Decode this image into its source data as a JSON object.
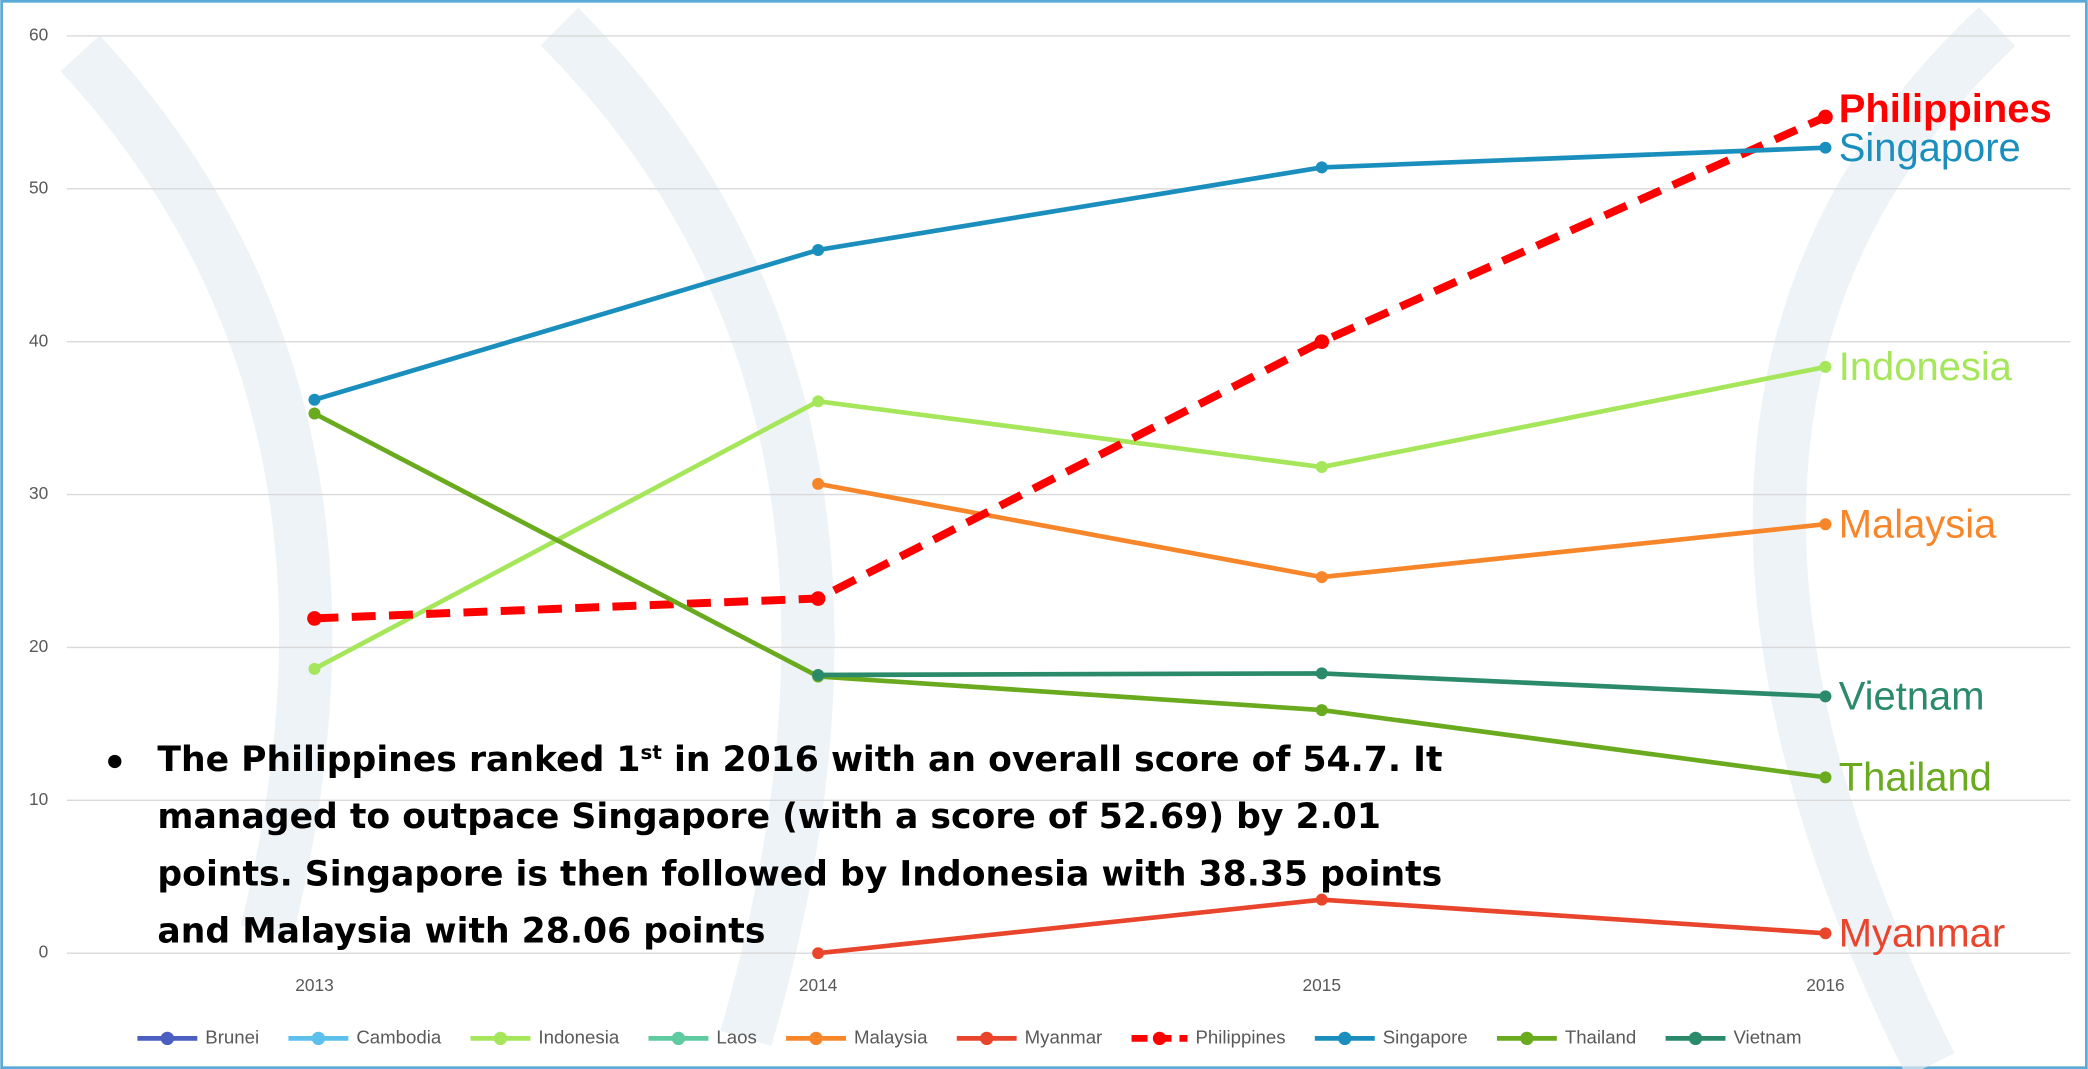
{
  "chart_data": {
    "type": "line",
    "categories": [
      "2013",
      "2014",
      "2015",
      "2016"
    ],
    "ylim": [
      0,
      60
    ],
    "yticks": [
      0,
      10,
      20,
      30,
      40,
      50,
      60
    ],
    "grid": true,
    "legend": "bottom",
    "end_labels": true,
    "series": [
      {
        "name": "Brunei",
        "color": "#4a5fc1",
        "values": [
          null,
          null,
          null,
          null
        ]
      },
      {
        "name": "Cambodia",
        "color": "#5bc0eb",
        "values": [
          null,
          null,
          null,
          null
        ]
      },
      {
        "name": "Indonesia",
        "color": "#a5e65a",
        "values": [
          18.6,
          36.1,
          31.8,
          38.35
        ]
      },
      {
        "name": "Laos",
        "color": "#5ecca0",
        "values": [
          null,
          null,
          null,
          null
        ]
      },
      {
        "name": "Malaysia",
        "color": "#f7862b",
        "values": [
          null,
          30.7,
          24.6,
          28.06
        ]
      },
      {
        "name": "Myanmar",
        "color": "#e8452c",
        "values": [
          null,
          0,
          3.5,
          1.3
        ]
      },
      {
        "name": "Philippines",
        "color": "#ff0000",
        "dashed": true,
        "bold_label": true,
        "values": [
          21.9,
          23.2,
          40.0,
          54.7
        ]
      },
      {
        "name": "Singapore",
        "color": "#1a8fbd",
        "values": [
          36.2,
          46.0,
          51.4,
          52.69
        ]
      },
      {
        "name": "Thailand",
        "color": "#6aaa1e",
        "values": [
          35.3,
          18.1,
          15.9,
          11.5
        ]
      },
      {
        "name": "Vietnam",
        "color": "#2a8a6a",
        "values": [
          null,
          18.2,
          18.3,
          16.8
        ]
      }
    ],
    "annotation": {
      "before": "The Philippines ranked 1",
      "sup": "st",
      "after": " in 2016 with an overall score of 54.7. It managed to outpace Singapore (with a score of 52.69) by 2.01 points. Singapore is then followed by Indonesia with 38.35 points and Malaysia with 28.06 points"
    }
  }
}
